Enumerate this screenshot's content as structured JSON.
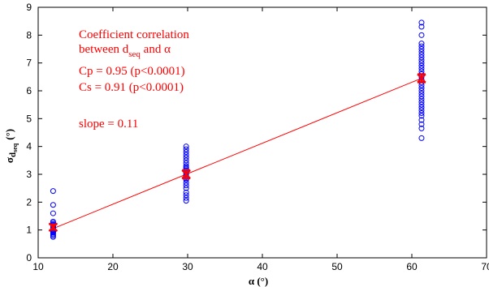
{
  "chart_data": {
    "type": "scatter",
    "xlabel": "α (°)",
    "ylabel": {
      "base": "σ",
      "sub": "d",
      "subsub": "seq",
      "unit": "(°)"
    },
    "xlim": [
      10,
      70
    ],
    "ylim": [
      0,
      9
    ],
    "xticks": [
      10,
      20,
      30,
      40,
      50,
      60,
      70
    ],
    "yticks": [
      0,
      1,
      2,
      3,
      4,
      5,
      6,
      7,
      8,
      9
    ],
    "grid": false,
    "colors": {
      "points": "#0000ff",
      "fit": "#ff0000",
      "mean": "#ff0000",
      "annotation": "#ff0000"
    },
    "groups": [
      {
        "x": 12,
        "values": [
          0.75,
          0.8,
          0.85,
          0.9,
          0.92,
          0.95,
          0.98,
          1.0,
          1.02,
          1.05,
          1.08,
          1.1,
          1.12,
          1.15,
          1.18,
          1.2,
          1.25,
          1.3,
          1.6,
          1.9,
          2.4
        ],
        "mean": 1.1,
        "error": 0.1
      },
      {
        "x": 29.8,
        "values": [
          2.05,
          2.15,
          2.25,
          2.35,
          2.5,
          2.6,
          2.7,
          2.8,
          2.85,
          2.9,
          2.95,
          3.0,
          3.05,
          3.1,
          3.15,
          3.2,
          3.25,
          3.3,
          3.4,
          3.5,
          3.6,
          3.7,
          3.8,
          3.9,
          4.0
        ],
        "mean": 3.0,
        "error": 0.15
      },
      {
        "x": 61.3,
        "values": [
          4.3,
          4.65,
          4.8,
          4.95,
          5.1,
          5.2,
          5.3,
          5.4,
          5.5,
          5.6,
          5.7,
          5.8,
          5.9,
          6.0,
          6.1,
          6.2,
          6.3,
          6.4,
          6.5,
          6.6,
          6.7,
          6.8,
          6.9,
          7.0,
          7.1,
          7.2,
          7.3,
          7.4,
          7.5,
          7.6,
          7.7,
          8.0,
          8.3,
          8.45
        ],
        "mean": 6.45,
        "error": 0.15
      }
    ],
    "fit_line": {
      "x": [
        12,
        61.3
      ],
      "y": [
        1.05,
        6.45
      ]
    },
    "annotation": {
      "line1": "Coefficient correlation",
      "line2_pre": "between d",
      "line2_sub": "seq",
      "line2_post": " and α",
      "cp": "Cp = 0.95 (p<0.0001)",
      "cs": "Cs = 0.91 (p<0.0001)",
      "slope": "slope = 0.11"
    }
  }
}
